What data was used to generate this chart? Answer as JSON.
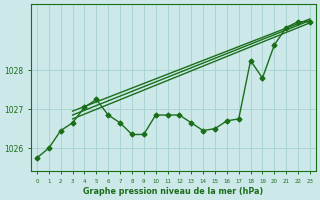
{
  "xlabel": "Graphe pression niveau de la mer (hPa)",
  "background_color": "#cce8e8",
  "grid_color": "#aad4d4",
  "line_color": "#1a6e1a",
  "x_hours": [
    0,
    1,
    2,
    3,
    4,
    5,
    6,
    7,
    8,
    9,
    10,
    11,
    12,
    13,
    14,
    15,
    16,
    17,
    18,
    19,
    20,
    21,
    22,
    23
  ],
  "main_line": [
    1025.75,
    1026.0,
    1026.45,
    1026.65,
    1027.05,
    1027.25,
    1026.85,
    1026.65,
    1026.35,
    1026.35,
    1026.85,
    1026.85,
    1026.85,
    1026.65,
    1026.45,
    1026.5,
    1026.7,
    1026.75,
    1028.25,
    1027.8,
    1028.65,
    1029.1,
    1029.25,
    1029.25
  ],
  "trend_line1_x": [
    3,
    23
  ],
  "trend_line1_y": [
    1026.75,
    1029.22
  ],
  "trend_line2_x": [
    3,
    23
  ],
  "trend_line2_y": [
    1026.85,
    1029.28
  ],
  "trend_line3_x": [
    3,
    23
  ],
  "trend_line3_y": [
    1026.95,
    1029.32
  ],
  "ylim": [
    1025.4,
    1029.7
  ],
  "yticks": [
    1026,
    1027,
    1028
  ],
  "xticks": [
    0,
    1,
    2,
    3,
    4,
    5,
    6,
    7,
    8,
    9,
    10,
    11,
    12,
    13,
    14,
    15,
    16,
    17,
    18,
    19,
    20,
    21,
    22,
    23
  ],
  "marker": "D",
  "marker_size": 2.5,
  "line_width": 1.0
}
